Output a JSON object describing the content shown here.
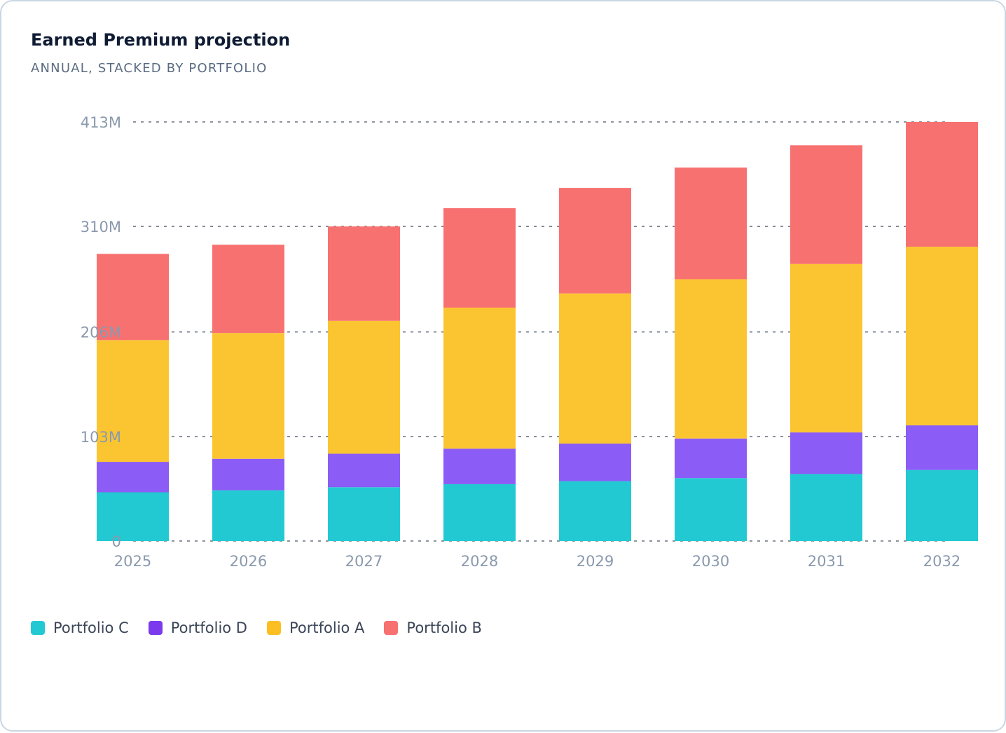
{
  "header": {
    "title": "Earned Premium projection",
    "subtitle": "ANNUAL, STACKED BY PORTFOLIO"
  },
  "chart_data": {
    "type": "bar",
    "stacked": true,
    "categories": [
      "2025",
      "2026",
      "2027",
      "2028",
      "2029",
      "2030",
      "2031",
      "2032"
    ],
    "ylim": [
      0,
      413
    ],
    "yticks": [
      0,
      103,
      206,
      310,
      413
    ],
    "ytick_labels": [
      "0",
      "103M",
      "206M",
      "310M",
      "413M"
    ],
    "grid": true,
    "legend_position": "bottom-left",
    "series": [
      {
        "name": "Portfolio C",
        "color": "#22c9d3",
        "values": [
          48,
          50,
          53,
          56,
          59,
          62,
          66,
          70
        ]
      },
      {
        "name": "Portfolio D",
        "color": "#8b5cf6",
        "values": [
          30,
          31,
          33,
          35,
          37,
          39,
          41,
          44
        ]
      },
      {
        "name": "Portfolio A",
        "color": "#fbc531",
        "values": [
          120,
          124,
          131,
          139,
          148,
          157,
          166,
          176
        ]
      },
      {
        "name": "Portfolio B",
        "color": "#f87171",
        "values": [
          85,
          87,
          93,
          98,
          104,
          110,
          117,
          123
        ]
      }
    ]
  }
}
